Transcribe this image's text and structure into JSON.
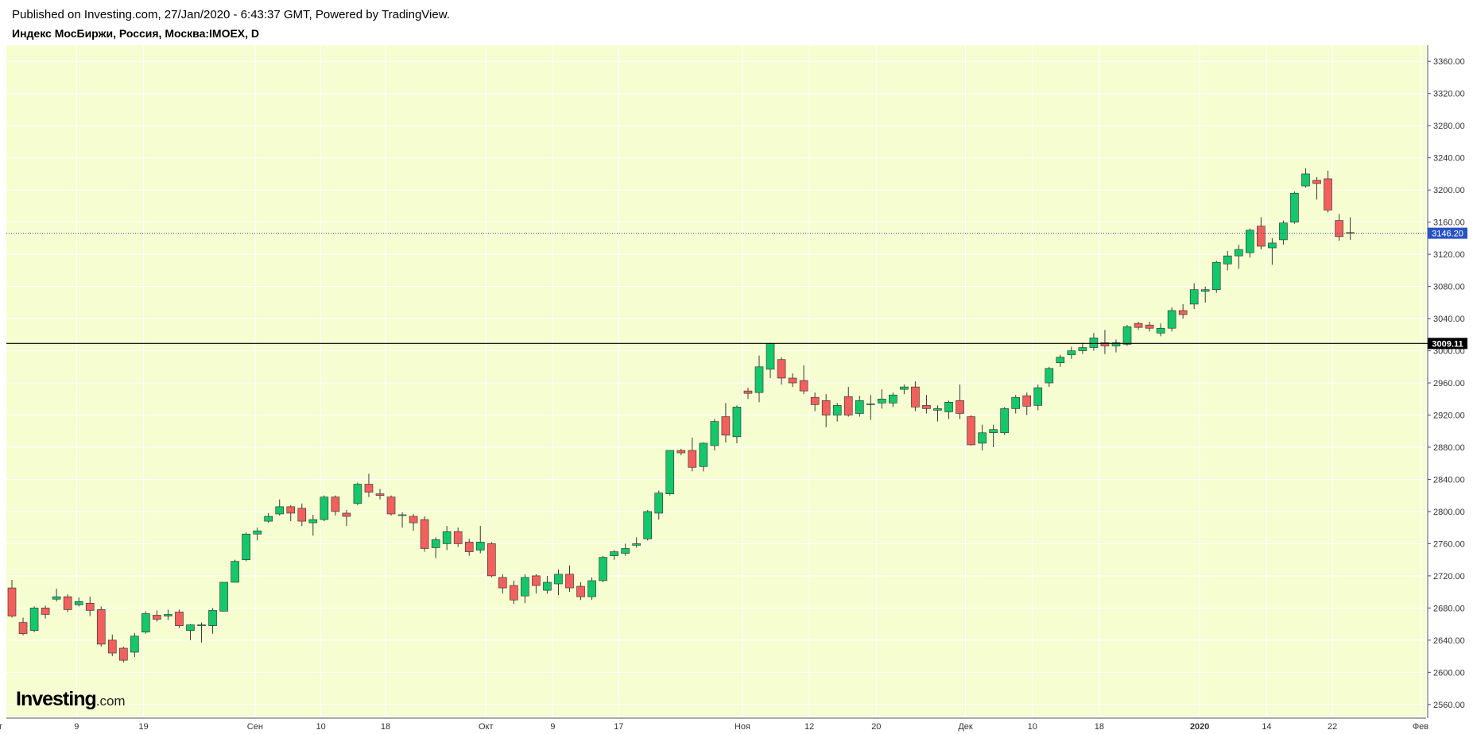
{
  "header": {
    "published": "Published on Investing.com, 27/Jan/2020 - 6:43:37 GMT, Powered by TradingView.",
    "title": "Индекс МосБиржи, Россия, Москва:IMOEX, D"
  },
  "logo": {
    "brand": "Investing",
    "suffix": ".com"
  },
  "colors": {
    "plot_bg": "#f5fdd1",
    "grid": "#ffffff",
    "up": "#14c76a",
    "down": "#f2605d",
    "wick": "#3a3a3a",
    "last_price_line": "#2a52c4",
    "level_line": "#000000"
  },
  "chart_data": {
    "type": "candlestick",
    "title": "Индекс МосБиржи, Россия, Москва:IMOEX, D",
    "ylim": [
      2545,
      3380
    ],
    "y_ticks": [
      2560,
      2600,
      2640,
      2680,
      2720,
      2760,
      2800,
      2840,
      2880,
      2920,
      2960,
      3000,
      3040,
      3080,
      3120,
      3160,
      3200,
      3240,
      3280,
      3320,
      3360
    ],
    "y_tick_labels": [
      "2560.00",
      "2600.00",
      "2640.00",
      "2680.00",
      "2720.00",
      "2760.00",
      "2800.00",
      "2840.00",
      "2880.00",
      "2920.00",
      "2960.00",
      "3000.00",
      "3040.00",
      "3080.00",
      "3120.00",
      "3160.00",
      "3200.00",
      "3240.00",
      "3280.00",
      "3320.00",
      "3360.00"
    ],
    "x_ticks": [
      {
        "label": "вг",
        "index": -1.2,
        "bold": false
      },
      {
        "label": "9",
        "index": 5.8,
        "bold": false
      },
      {
        "label": "19",
        "index": 11.8,
        "bold": false
      },
      {
        "label": "Сен",
        "index": 21.8,
        "bold": false
      },
      {
        "label": "10",
        "index": 27.7,
        "bold": false
      },
      {
        "label": "18",
        "index": 33.5,
        "bold": false
      },
      {
        "label": "Окт",
        "index": 42.5,
        "bold": false
      },
      {
        "label": "9",
        "index": 48.5,
        "bold": false
      },
      {
        "label": "17",
        "index": 54.4,
        "bold": false
      },
      {
        "label": "Ноя",
        "index": 65.5,
        "bold": false
      },
      {
        "label": "12",
        "index": 71.5,
        "bold": false
      },
      {
        "label": "20",
        "index": 77.5,
        "bold": false
      },
      {
        "label": "Дек",
        "index": 85.5,
        "bold": false
      },
      {
        "label": "10",
        "index": 91.5,
        "bold": false
      },
      {
        "label": "18",
        "index": 97.5,
        "bold": false
      },
      {
        "label": "2020",
        "index": 106.5,
        "bold": true
      },
      {
        "label": "14",
        "index": 112.5,
        "bold": false
      },
      {
        "label": "22",
        "index": 118.4,
        "bold": false
      },
      {
        "label": "Фев",
        "index": 126.3,
        "bold": false
      }
    ],
    "last_price": 3146.2,
    "last_price_label": "3146.20",
    "level": 3009.11,
    "level_label": "3009.11",
    "grid": true,
    "candles": [
      {
        "o": 2705,
        "h": 2715,
        "l": 2668,
        "c": 2670
      },
      {
        "o": 2662,
        "h": 2668,
        "l": 2646,
        "c": 2648
      },
      {
        "o": 2652,
        "h": 2682,
        "l": 2650,
        "c": 2680
      },
      {
        "o": 2680,
        "h": 2683,
        "l": 2667,
        "c": 2672
      },
      {
        "o": 2691,
        "h": 2704,
        "l": 2688,
        "c": 2694
      },
      {
        "o": 2694,
        "h": 2697,
        "l": 2675,
        "c": 2678
      },
      {
        "o": 2684,
        "h": 2693,
        "l": 2682,
        "c": 2688
      },
      {
        "o": 2686,
        "h": 2694,
        "l": 2670,
        "c": 2677
      },
      {
        "o": 2678,
        "h": 2682,
        "l": 2632,
        "c": 2635
      },
      {
        "o": 2640,
        "h": 2647,
        "l": 2620,
        "c": 2624
      },
      {
        "o": 2630,
        "h": 2632,
        "l": 2612,
        "c": 2615
      },
      {
        "o": 2625,
        "h": 2649,
        "l": 2619,
        "c": 2645
      },
      {
        "o": 2650,
        "h": 2676,
        "l": 2648,
        "c": 2673
      },
      {
        "o": 2671,
        "h": 2677,
        "l": 2663,
        "c": 2666
      },
      {
        "o": 2670,
        "h": 2678,
        "l": 2665,
        "c": 2672
      },
      {
        "o": 2675,
        "h": 2678,
        "l": 2655,
        "c": 2658
      },
      {
        "o": 2652,
        "h": 2660,
        "l": 2640,
        "c": 2659
      },
      {
        "o": 2659,
        "h": 2662,
        "l": 2637,
        "c": 2659
      },
      {
        "o": 2658,
        "h": 2680,
        "l": 2648,
        "c": 2677
      },
      {
        "o": 2676,
        "h": 2712,
        "l": 2676,
        "c": 2712
      },
      {
        "o": 2712,
        "h": 2740,
        "l": 2712,
        "c": 2738
      },
      {
        "o": 2740,
        "h": 2774,
        "l": 2738,
        "c": 2772
      },
      {
        "o": 2772,
        "h": 2780,
        "l": 2764,
        "c": 2776
      },
      {
        "o": 2788,
        "h": 2798,
        "l": 2786,
        "c": 2794
      },
      {
        "o": 2797,
        "h": 2815,
        "l": 2795,
        "c": 2806
      },
      {
        "o": 2806,
        "h": 2808,
        "l": 2788,
        "c": 2798
      },
      {
        "o": 2804,
        "h": 2810,
        "l": 2782,
        "c": 2788
      },
      {
        "o": 2786,
        "h": 2796,
        "l": 2770,
        "c": 2790
      },
      {
        "o": 2790,
        "h": 2820,
        "l": 2788,
        "c": 2818
      },
      {
        "o": 2818,
        "h": 2820,
        "l": 2795,
        "c": 2800
      },
      {
        "o": 2798,
        "h": 2802,
        "l": 2782,
        "c": 2794
      },
      {
        "o": 2810,
        "h": 2836,
        "l": 2808,
        "c": 2834
      },
      {
        "o": 2834,
        "h": 2847,
        "l": 2818,
        "c": 2824
      },
      {
        "o": 2822,
        "h": 2828,
        "l": 2815,
        "c": 2820
      },
      {
        "o": 2818,
        "h": 2820,
        "l": 2795,
        "c": 2797
      },
      {
        "o": 2796,
        "h": 2799,
        "l": 2780,
        "c": 2796
      },
      {
        "o": 2794,
        "h": 2797,
        "l": 2776,
        "c": 2786
      },
      {
        "o": 2790,
        "h": 2794,
        "l": 2750,
        "c": 2754
      },
      {
        "o": 2755,
        "h": 2768,
        "l": 2742,
        "c": 2765
      },
      {
        "o": 2760,
        "h": 2782,
        "l": 2752,
        "c": 2775
      },
      {
        "o": 2775,
        "h": 2780,
        "l": 2756,
        "c": 2760
      },
      {
        "o": 2762,
        "h": 2766,
        "l": 2745,
        "c": 2750
      },
      {
        "o": 2752,
        "h": 2782,
        "l": 2748,
        "c": 2762
      },
      {
        "o": 2760,
        "h": 2762,
        "l": 2718,
        "c": 2720
      },
      {
        "o": 2718,
        "h": 2722,
        "l": 2698,
        "c": 2705
      },
      {
        "o": 2708,
        "h": 2714,
        "l": 2685,
        "c": 2690
      },
      {
        "o": 2695,
        "h": 2722,
        "l": 2686,
        "c": 2718
      },
      {
        "o": 2720,
        "h": 2722,
        "l": 2698,
        "c": 2708
      },
      {
        "o": 2702,
        "h": 2720,
        "l": 2698,
        "c": 2712
      },
      {
        "o": 2710,
        "h": 2728,
        "l": 2696,
        "c": 2722
      },
      {
        "o": 2722,
        "h": 2733,
        "l": 2700,
        "c": 2705
      },
      {
        "o": 2707,
        "h": 2712,
        "l": 2690,
        "c": 2694
      },
      {
        "o": 2694,
        "h": 2718,
        "l": 2690,
        "c": 2714
      },
      {
        "o": 2714,
        "h": 2745,
        "l": 2712,
        "c": 2743
      },
      {
        "o": 2745,
        "h": 2752,
        "l": 2740,
        "c": 2750
      },
      {
        "o": 2748,
        "h": 2760,
        "l": 2745,
        "c": 2754
      },
      {
        "o": 2758,
        "h": 2768,
        "l": 2755,
        "c": 2760
      },
      {
        "o": 2766,
        "h": 2802,
        "l": 2764,
        "c": 2800
      },
      {
        "o": 2798,
        "h": 2826,
        "l": 2790,
        "c": 2823
      },
      {
        "o": 2822,
        "h": 2876,
        "l": 2820,
        "c": 2876
      },
      {
        "o": 2876,
        "h": 2878,
        "l": 2870,
        "c": 2873
      },
      {
        "o": 2876,
        "h": 2892,
        "l": 2850,
        "c": 2855
      },
      {
        "o": 2856,
        "h": 2886,
        "l": 2850,
        "c": 2885
      },
      {
        "o": 2882,
        "h": 2915,
        "l": 2876,
        "c": 2912
      },
      {
        "o": 2918,
        "h": 2935,
        "l": 2886,
        "c": 2895
      },
      {
        "o": 2893,
        "h": 2932,
        "l": 2885,
        "c": 2930
      },
      {
        "o": 2950,
        "h": 2954,
        "l": 2940,
        "c": 2947
      },
      {
        "o": 2948,
        "h": 2994,
        "l": 2936,
        "c": 2980
      },
      {
        "o": 2977,
        "h": 3010,
        "l": 2966,
        "c": 3009
      },
      {
        "o": 2989,
        "h": 2992,
        "l": 2958,
        "c": 2966
      },
      {
        "o": 2966,
        "h": 2972,
        "l": 2955,
        "c": 2960
      },
      {
        "o": 2963,
        "h": 2982,
        "l": 2946,
        "c": 2950
      },
      {
        "o": 2942,
        "h": 2948,
        "l": 2925,
        "c": 2933
      },
      {
        "o": 2938,
        "h": 2946,
        "l": 2905,
        "c": 2920
      },
      {
        "o": 2920,
        "h": 2935,
        "l": 2912,
        "c": 2932
      },
      {
        "o": 2943,
        "h": 2955,
        "l": 2918,
        "c": 2920
      },
      {
        "o": 2922,
        "h": 2944,
        "l": 2918,
        "c": 2938
      },
      {
        "o": 2934,
        "h": 2945,
        "l": 2914,
        "c": 2934
      },
      {
        "o": 2935,
        "h": 2952,
        "l": 2928,
        "c": 2940
      },
      {
        "o": 2935,
        "h": 2948,
        "l": 2930,
        "c": 2945
      },
      {
        "o": 2952,
        "h": 2958,
        "l": 2946,
        "c": 2955
      },
      {
        "o": 2955,
        "h": 2962,
        "l": 2925,
        "c": 2930
      },
      {
        "o": 2932,
        "h": 2945,
        "l": 2922,
        "c": 2928
      },
      {
        "o": 2926,
        "h": 2932,
        "l": 2912,
        "c": 2928
      },
      {
        "o": 2924,
        "h": 2938,
        "l": 2915,
        "c": 2936
      },
      {
        "o": 2938,
        "h": 2958,
        "l": 2915,
        "c": 2922
      },
      {
        "o": 2918,
        "h": 2920,
        "l": 2882,
        "c": 2883
      },
      {
        "o": 2885,
        "h": 2908,
        "l": 2876,
        "c": 2898
      },
      {
        "o": 2898,
        "h": 2908,
        "l": 2880,
        "c": 2902
      },
      {
        "o": 2898,
        "h": 2930,
        "l": 2895,
        "c": 2928
      },
      {
        "o": 2928,
        "h": 2945,
        "l": 2922,
        "c": 2942
      },
      {
        "o": 2944,
        "h": 2948,
        "l": 2920,
        "c": 2931
      },
      {
        "o": 2932,
        "h": 2958,
        "l": 2926,
        "c": 2954
      },
      {
        "o": 2960,
        "h": 2980,
        "l": 2955,
        "c": 2978
      },
      {
        "o": 2985,
        "h": 2995,
        "l": 2980,
        "c": 2992
      },
      {
        "o": 2995,
        "h": 3005,
        "l": 2990,
        "c": 3000
      },
      {
        "o": 3000,
        "h": 3010,
        "l": 2996,
        "c": 3004
      },
      {
        "o": 3004,
        "h": 3022,
        "l": 3000,
        "c": 3016
      },
      {
        "o": 3010,
        "h": 3026,
        "l": 2996,
        "c": 3006
      },
      {
        "o": 3006,
        "h": 3014,
        "l": 2998,
        "c": 3010
      },
      {
        "o": 3008,
        "h": 3032,
        "l": 3006,
        "c": 3030
      },
      {
        "o": 3034,
        "h": 3036,
        "l": 3026,
        "c": 3029
      },
      {
        "o": 3032,
        "h": 3036,
        "l": 3024,
        "c": 3028
      },
      {
        "o": 3022,
        "h": 3034,
        "l": 3018,
        "c": 3028
      },
      {
        "o": 3028,
        "h": 3054,
        "l": 3024,
        "c": 3050
      },
      {
        "o": 3050,
        "h": 3058,
        "l": 3040,
        "c": 3045
      },
      {
        "o": 3058,
        "h": 3084,
        "l": 3052,
        "c": 3076
      },
      {
        "o": 3074,
        "h": 3080,
        "l": 3060,
        "c": 3076
      },
      {
        "o": 3076,
        "h": 3112,
        "l": 3072,
        "c": 3110
      },
      {
        "o": 3108,
        "h": 3124,
        "l": 3100,
        "c": 3118
      },
      {
        "o": 3118,
        "h": 3132,
        "l": 3102,
        "c": 3126
      },
      {
        "o": 3122,
        "h": 3152,
        "l": 3116,
        "c": 3150
      },
      {
        "o": 3155,
        "h": 3166,
        "l": 3126,
        "c": 3130
      },
      {
        "o": 3128,
        "h": 3140,
        "l": 3107,
        "c": 3134
      },
      {
        "o": 3138,
        "h": 3162,
        "l": 3132,
        "c": 3159
      },
      {
        "o": 3160,
        "h": 3198,
        "l": 3158,
        "c": 3196
      },
      {
        "o": 3205,
        "h": 3227,
        "l": 3203,
        "c": 3220
      },
      {
        "o": 3212,
        "h": 3216,
        "l": 3188,
        "c": 3208
      },
      {
        "o": 3214,
        "h": 3224,
        "l": 3172,
        "c": 3175
      },
      {
        "o": 3162,
        "h": 3170,
        "l": 3137,
        "c": 3142
      },
      {
        "o": 3147,
        "h": 3166,
        "l": 3138,
        "c": 3146
      }
    ]
  }
}
